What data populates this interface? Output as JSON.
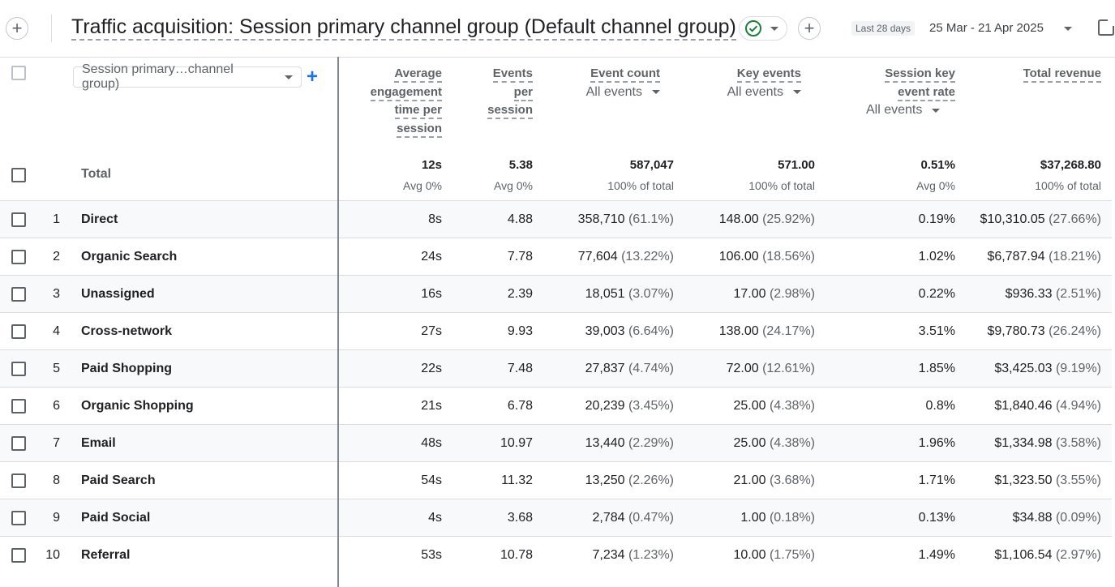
{
  "header": {
    "title": "Traffic acquisition: Session primary channel group (Default channel group)",
    "date_chip": "Last 28 days",
    "date_range": "25 Mar - 21 Apr 2025"
  },
  "dimension_select": {
    "label": "Session primary…channel group)"
  },
  "columns": [
    {
      "key": "avg_eng",
      "label_lines": [
        "Average",
        "engagement",
        "time per",
        "session"
      ],
      "sub": ""
    },
    {
      "key": "events_per_session",
      "label_lines": [
        "Events",
        "per",
        "session"
      ],
      "sub": ""
    },
    {
      "key": "event_count",
      "label_lines": [
        "Event count"
      ],
      "sub": "All events"
    },
    {
      "key": "key_events",
      "label_lines": [
        "Key events"
      ],
      "sub": "All events"
    },
    {
      "key": "session_key_rate",
      "label_lines": [
        "Session key",
        "event rate"
      ],
      "sub": "All events"
    },
    {
      "key": "total_revenue",
      "label_lines": [
        "Total revenue"
      ],
      "sub": ""
    }
  ],
  "totals": {
    "label": "Total",
    "values": [
      "12s",
      "5.38",
      "587,047",
      "571.00",
      "0.51%",
      "$37,268.80"
    ],
    "subs": [
      "Avg 0%",
      "Avg 0%",
      "100% of total",
      "100% of total",
      "Avg 0%",
      "100% of total"
    ]
  },
  "rows": [
    {
      "rank": "1",
      "channel": "Direct",
      "avg_eng": "8s",
      "eps": "4.88",
      "ec": "358,710",
      "ec_pct": "(61.1%)",
      "ke": "148.00",
      "ke_pct": "(25.92%)",
      "rate": "0.19%",
      "rev": "$10,310.05",
      "rev_pct": "(27.66%)"
    },
    {
      "rank": "2",
      "channel": "Organic Search",
      "avg_eng": "24s",
      "eps": "7.78",
      "ec": "77,604",
      "ec_pct": "(13.22%)",
      "ke": "106.00",
      "ke_pct": "(18.56%)",
      "rate": "1.02%",
      "rev": "$6,787.94",
      "rev_pct": "(18.21%)"
    },
    {
      "rank": "3",
      "channel": "Unassigned",
      "avg_eng": "16s",
      "eps": "2.39",
      "ec": "18,051",
      "ec_pct": "(3.07%)",
      "ke": "17.00",
      "ke_pct": "(2.98%)",
      "rate": "0.22%",
      "rev": "$936.33",
      "rev_pct": "(2.51%)"
    },
    {
      "rank": "4",
      "channel": "Cross-network",
      "avg_eng": "27s",
      "eps": "9.93",
      "ec": "39,003",
      "ec_pct": "(6.64%)",
      "ke": "138.00",
      "ke_pct": "(24.17%)",
      "rate": "3.51%",
      "rev": "$9,780.73",
      "rev_pct": "(26.24%)"
    },
    {
      "rank": "5",
      "channel": "Paid Shopping",
      "avg_eng": "22s",
      "eps": "7.48",
      "ec": "27,837",
      "ec_pct": "(4.74%)",
      "ke": "72.00",
      "ke_pct": "(12.61%)",
      "rate": "1.85%",
      "rev": "$3,425.03",
      "rev_pct": "(9.19%)"
    },
    {
      "rank": "6",
      "channel": "Organic Shopping",
      "avg_eng": "21s",
      "eps": "6.78",
      "ec": "20,239",
      "ec_pct": "(3.45%)",
      "ke": "25.00",
      "ke_pct": "(4.38%)",
      "rate": "0.8%",
      "rev": "$1,840.46",
      "rev_pct": "(4.94%)"
    },
    {
      "rank": "7",
      "channel": "Email",
      "avg_eng": "48s",
      "eps": "10.97",
      "ec": "13,440",
      "ec_pct": "(2.29%)",
      "ke": "25.00",
      "ke_pct": "(4.38%)",
      "rate": "1.96%",
      "rev": "$1,334.98",
      "rev_pct": "(3.58%)"
    },
    {
      "rank": "8",
      "channel": "Paid Search",
      "avg_eng": "54s",
      "eps": "11.32",
      "ec": "13,250",
      "ec_pct": "(2.26%)",
      "ke": "21.00",
      "ke_pct": "(3.68%)",
      "rate": "1.71%",
      "rev": "$1,323.50",
      "rev_pct": "(3.55%)"
    },
    {
      "rank": "9",
      "channel": "Paid Social",
      "avg_eng": "4s",
      "eps": "3.68",
      "ec": "2,784",
      "ec_pct": "(0.47%)",
      "ke": "1.00",
      "ke_pct": "(0.18%)",
      "rate": "0.13%",
      "rev": "$34.88",
      "rev_pct": "(0.09%)"
    },
    {
      "rank": "10",
      "channel": "Referral",
      "avg_eng": "53s",
      "eps": "10.78",
      "ec": "7,234",
      "ec_pct": "(1.23%)",
      "ke": "10.00",
      "ke_pct": "(1.75%)",
      "rate": "1.49%",
      "rev": "$1,106.54",
      "rev_pct": "(2.97%)"
    }
  ],
  "icons": {
    "add": "add-circle-icon",
    "status": "check-circle-icon",
    "share": "share-icon"
  },
  "colors": {
    "accent": "#1a73e8",
    "check_green": "#188038"
  }
}
